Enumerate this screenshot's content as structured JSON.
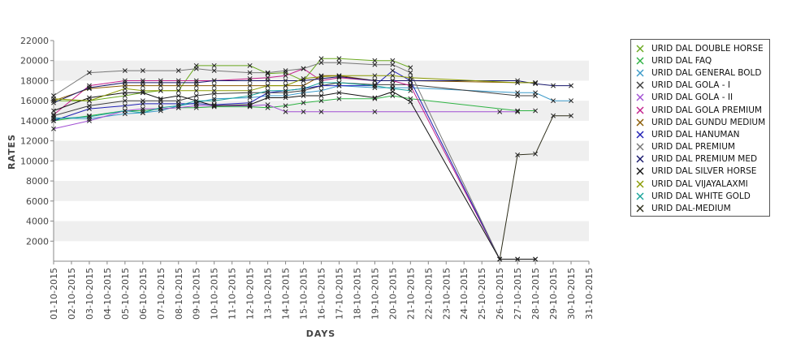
{
  "chart_data": {
    "type": "line",
    "title": "",
    "xlabel": "DAYS",
    "ylabel": "RATES",
    "ylim": [
      0,
      22000
    ],
    "yticks": [
      2000,
      4000,
      6000,
      8000,
      10000,
      12000,
      14000,
      16000,
      18000,
      20000,
      22000
    ],
    "x": [
      "01-10-2015",
      "02-10-2015",
      "03-10-2015",
      "04-10-2015",
      "05-10-2015",
      "06-10-2015",
      "07-10-2015",
      "08-10-2015",
      "09-10-2015",
      "10-10-2015",
      "11-10-2015",
      "12-10-2015",
      "13-10-2015",
      "14-10-2015",
      "15-10-2015",
      "16-10-2015",
      "17-10-2015",
      "18-10-2015",
      "19-10-2015",
      "20-10-2015",
      "21-10-2015",
      "22-10-2015",
      "23-10-2015",
      "24-10-2015",
      "25-10-2015",
      "26-10-2015",
      "27-10-2015",
      "28-10-2015",
      "29-10-2015",
      "30-10-2015",
      "31-10-2015"
    ],
    "legend_position": "right",
    "grid": "alternating horizontal bands",
    "series": [
      {
        "name": "URID DAL DOUBLE HORSE",
        "color": "#6aa81e",
        "points": [
          [
            "01-10-2015",
            16000
          ],
          [
            "03-10-2015",
            16000
          ],
          [
            "05-10-2015",
            16500
          ],
          [
            "06-10-2015",
            16800
          ],
          [
            "07-10-2015",
            17000
          ],
          [
            "08-10-2015",
            17000
          ],
          [
            "09-10-2015",
            19500
          ],
          [
            "10-10-2015",
            19500
          ],
          [
            "12-10-2015",
            19500
          ],
          [
            "13-10-2015",
            18700
          ],
          [
            "14-10-2015",
            18800
          ],
          [
            "15-10-2015",
            18000
          ],
          [
            "16-10-2015",
            20200
          ],
          [
            "17-10-2015",
            20200
          ],
          [
            "19-10-2015",
            20000
          ],
          [
            "20-10-2015",
            20000
          ],
          [
            "21-10-2015",
            19300
          ]
        ]
      },
      {
        "name": "URID DAL FAQ",
        "color": "#2fb344",
        "points": [
          [
            "01-10-2015",
            14000
          ],
          [
            "03-10-2015",
            14500
          ],
          [
            "05-10-2015",
            15000
          ],
          [
            "06-10-2015",
            15000
          ],
          [
            "07-10-2015",
            15200
          ],
          [
            "08-10-2015",
            15300
          ],
          [
            "09-10-2015",
            15300
          ],
          [
            "10-10-2015",
            15400
          ],
          [
            "12-10-2015",
            15400
          ],
          [
            "13-10-2015",
            15300
          ],
          [
            "14-10-2015",
            15500
          ],
          [
            "15-10-2015",
            15800
          ],
          [
            "16-10-2015",
            16000
          ],
          [
            "17-10-2015",
            16200
          ],
          [
            "19-10-2015",
            16200
          ],
          [
            "20-10-2015",
            16500
          ],
          [
            "21-10-2015",
            16200
          ],
          [
            "27-10-2015",
            15000
          ],
          [
            "28-10-2015",
            15000
          ]
        ]
      },
      {
        "name": "URID DAL GENERAL BOLD",
        "color": "#3b9ac9",
        "points": [
          [
            "01-10-2015",
            14300
          ],
          [
            "03-10-2015",
            14200
          ],
          [
            "05-10-2015",
            14700
          ],
          [
            "06-10-2015",
            14800
          ],
          [
            "07-10-2015",
            15000
          ],
          [
            "08-10-2015",
            15500
          ],
          [
            "09-10-2015",
            15800
          ],
          [
            "10-10-2015",
            16200
          ],
          [
            "12-10-2015",
            16300
          ],
          [
            "13-10-2015",
            16500
          ],
          [
            "14-10-2015",
            16500
          ],
          [
            "15-10-2015",
            16800
          ],
          [
            "16-10-2015",
            17000
          ],
          [
            "17-10-2015",
            17500
          ],
          [
            "19-10-2015",
            17300
          ],
          [
            "20-10-2015",
            17300
          ],
          [
            "21-10-2015",
            17300
          ],
          [
            "27-10-2015",
            16800
          ],
          [
            "28-10-2015",
            16800
          ],
          [
            "29-10-2015",
            16000
          ],
          [
            "30-10-2015",
            16000
          ]
        ]
      },
      {
        "name": "URID DAL GOLA - I",
        "color": "#3c3c3c",
        "points": [
          [
            "01-10-2015",
            14500
          ],
          [
            "03-10-2015",
            15500
          ],
          [
            "05-10-2015",
            16000
          ],
          [
            "06-10-2015",
            16000
          ],
          [
            "07-10-2015",
            16000
          ],
          [
            "08-10-2015",
            16000
          ],
          [
            "09-10-2015",
            16500
          ],
          [
            "10-10-2015",
            16700
          ],
          [
            "12-10-2015",
            16800
          ],
          [
            "13-10-2015",
            16800
          ],
          [
            "14-10-2015",
            16800
          ],
          [
            "15-10-2015",
            17000
          ],
          [
            "16-10-2015",
            17500
          ],
          [
            "17-10-2015",
            17800
          ],
          [
            "19-10-2015",
            17600
          ],
          [
            "20-10-2015",
            17600
          ],
          [
            "21-10-2015",
            17600
          ],
          [
            "27-10-2015",
            16500
          ],
          [
            "28-10-2015",
            16500
          ]
        ]
      },
      {
        "name": "URID DAL GOLA - II",
        "color": "#a14fd3",
        "points": [
          [
            "01-10-2015",
            13200
          ],
          [
            "03-10-2015",
            14000
          ],
          [
            "05-10-2015",
            15000
          ],
          [
            "06-10-2015",
            15200
          ],
          [
            "07-10-2015",
            15200
          ],
          [
            "08-10-2015",
            15300
          ],
          [
            "09-10-2015",
            15500
          ],
          [
            "10-10-2015",
            15500
          ],
          [
            "12-10-2015",
            15500
          ],
          [
            "13-10-2015",
            15600
          ],
          [
            "14-10-2015",
            14900
          ],
          [
            "15-10-2015",
            14900
          ],
          [
            "16-10-2015",
            14900
          ],
          [
            "19-10-2015",
            14900
          ],
          [
            "26-10-2015",
            14900
          ],
          [
            "27-10-2015",
            14900
          ]
        ]
      },
      {
        "name": "URID DAL GOLA PREMIUM",
        "color": "#c21f8a",
        "points": [
          [
            "01-10-2015",
            14600
          ],
          [
            "03-10-2015",
            17500
          ],
          [
            "05-10-2015",
            18000
          ],
          [
            "06-10-2015",
            18000
          ],
          [
            "07-10-2015",
            18000
          ],
          [
            "08-10-2015",
            18000
          ],
          [
            "09-10-2015",
            18000
          ],
          [
            "10-10-2015",
            18000
          ],
          [
            "12-10-2015",
            18200
          ],
          [
            "13-10-2015",
            18300
          ],
          [
            "14-10-2015",
            18500
          ],
          [
            "15-10-2015",
            19200
          ],
          [
            "16-10-2015",
            18000
          ],
          [
            "17-10-2015",
            18300
          ],
          [
            "19-10-2015",
            18000
          ],
          [
            "20-10-2015",
            18000
          ],
          [
            "21-10-2015",
            17500
          ],
          [
            "26-10-2015",
            200
          ],
          [
            "27-10-2015",
            200
          ],
          [
            "28-10-2015",
            200
          ]
        ]
      },
      {
        "name": "URID DAL GUNDU MEDIUM",
        "color": "#8a5a00",
        "points": [
          [
            "01-10-2015",
            16000
          ],
          [
            "03-10-2015",
            17200
          ],
          [
            "05-10-2015",
            17500
          ],
          [
            "06-10-2015",
            17500
          ],
          [
            "07-10-2015",
            17500
          ],
          [
            "08-10-2015",
            17500
          ],
          [
            "09-10-2015",
            17500
          ],
          [
            "10-10-2015",
            17500
          ],
          [
            "12-10-2015",
            17500
          ],
          [
            "13-10-2015",
            17500
          ],
          [
            "14-10-2015",
            17500
          ],
          [
            "15-10-2015",
            17500
          ],
          [
            "16-10-2015",
            18500
          ],
          [
            "17-10-2015",
            18500
          ],
          [
            "19-10-2015",
            18000
          ],
          [
            "20-10-2015",
            18000
          ],
          [
            "21-10-2015",
            18000
          ],
          [
            "27-10-2015",
            17800
          ],
          [
            "28-10-2015",
            17800
          ]
        ]
      },
      {
        "name": "URID DAL HANUMAN",
        "color": "#1f1fb5",
        "points": [
          [
            "01-10-2015",
            14000
          ],
          [
            "03-10-2015",
            15200
          ],
          [
            "05-10-2015",
            15500
          ],
          [
            "06-10-2015",
            15700
          ],
          [
            "07-10-2015",
            15700
          ],
          [
            "08-10-2015",
            15700
          ],
          [
            "09-10-2015",
            15700
          ],
          [
            "10-10-2015",
            15600
          ],
          [
            "12-10-2015",
            15800
          ],
          [
            "13-10-2015",
            16800
          ],
          [
            "14-10-2015",
            17000
          ],
          [
            "15-10-2015",
            17200
          ],
          [
            "16-10-2015",
            17500
          ],
          [
            "17-10-2015",
            17500
          ],
          [
            "19-10-2015",
            17500
          ],
          [
            "20-10-2015",
            19000
          ],
          [
            "21-10-2015",
            18000
          ],
          [
            "26-10-2015",
            200
          ],
          [
            "27-10-2015",
            200
          ],
          [
            "28-10-2015",
            200
          ]
        ]
      },
      {
        "name": "URID DAL PREMIUM",
        "color": "#777777",
        "points": [
          [
            "01-10-2015",
            16500
          ],
          [
            "03-10-2015",
            18800
          ],
          [
            "05-10-2015",
            19000
          ],
          [
            "06-10-2015",
            19000
          ],
          [
            "08-10-2015",
            19000
          ],
          [
            "09-10-2015",
            19200
          ],
          [
            "10-10-2015",
            19000
          ],
          [
            "12-10-2015",
            18800
          ],
          [
            "13-10-2015",
            18800
          ],
          [
            "14-10-2015",
            19000
          ],
          [
            "15-10-2015",
            19200
          ],
          [
            "16-10-2015",
            19800
          ],
          [
            "17-10-2015",
            19800
          ],
          [
            "19-10-2015",
            19600
          ],
          [
            "20-10-2015",
            19600
          ],
          [
            "21-10-2015",
            18800
          ],
          [
            "26-10-2015",
            200
          ]
        ]
      },
      {
        "name": "URID DAL PREMIUM MED",
        "color": "#15156b",
        "points": [
          [
            "01-10-2015",
            15800
          ],
          [
            "03-10-2015",
            17300
          ],
          [
            "05-10-2015",
            17800
          ],
          [
            "06-10-2015",
            17800
          ],
          [
            "07-10-2015",
            17800
          ],
          [
            "08-10-2015",
            17800
          ],
          [
            "09-10-2015",
            17800
          ],
          [
            "10-10-2015",
            18000
          ],
          [
            "12-10-2015",
            18000
          ],
          [
            "13-10-2015",
            18000
          ],
          [
            "14-10-2015",
            18000
          ],
          [
            "15-10-2015",
            18000
          ],
          [
            "16-10-2015",
            18200
          ],
          [
            "17-10-2015",
            18400
          ],
          [
            "19-10-2015",
            18000
          ],
          [
            "20-10-2015",
            18000
          ],
          [
            "21-10-2015",
            18000
          ],
          [
            "27-10-2015",
            18000
          ],
          [
            "28-10-2015",
            17700
          ],
          [
            "29-10-2015",
            17500
          ],
          [
            "30-10-2015",
            17500
          ]
        ]
      },
      {
        "name": "URID DAL SILVER HORSE",
        "color": "#111111",
        "points": [
          [
            "01-10-2015",
            15000
          ],
          [
            "03-10-2015",
            16300
          ],
          [
            "05-10-2015",
            16800
          ],
          [
            "06-10-2015",
            16800
          ],
          [
            "07-10-2015",
            16200
          ],
          [
            "08-10-2015",
            16500
          ],
          [
            "09-10-2015",
            16000
          ],
          [
            "10-10-2015",
            15500
          ],
          [
            "12-10-2015",
            15600
          ],
          [
            "13-10-2015",
            16300
          ],
          [
            "14-10-2015",
            16300
          ],
          [
            "15-10-2015",
            16500
          ],
          [
            "16-10-2015",
            16500
          ],
          [
            "17-10-2015",
            16800
          ],
          [
            "19-10-2015",
            16300
          ],
          [
            "20-10-2015",
            16900
          ],
          [
            "21-10-2015",
            15900
          ],
          [
            "26-10-2015",
            200
          ],
          [
            "27-10-2015",
            200
          ],
          [
            "28-10-2015",
            200
          ]
        ]
      },
      {
        "name": "URID DAL VIJAYALAXMI",
        "color": "#8a9a00",
        "points": [
          [
            "01-10-2015",
            16200
          ],
          [
            "03-10-2015",
            16000
          ],
          [
            "05-10-2015",
            17200
          ],
          [
            "06-10-2015",
            17000
          ],
          [
            "07-10-2015",
            17000
          ],
          [
            "08-10-2015",
            17000
          ],
          [
            "09-10-2015",
            17000
          ],
          [
            "10-10-2015",
            17000
          ],
          [
            "12-10-2015",
            17000
          ],
          [
            "13-10-2015",
            17500
          ],
          [
            "14-10-2015",
            17500
          ],
          [
            "15-10-2015",
            18200
          ],
          [
            "16-10-2015",
            18400
          ],
          [
            "17-10-2015",
            18500
          ],
          [
            "19-10-2015",
            18500
          ],
          [
            "20-10-2015",
            18500
          ],
          [
            "21-10-2015",
            18300
          ],
          [
            "27-10-2015",
            17800
          ],
          [
            "28-10-2015",
            17800
          ]
        ]
      },
      {
        "name": "URID DAL WHITE GOLD",
        "color": "#17a39a",
        "points": [
          [
            "01-10-2015",
            14200
          ],
          [
            "03-10-2015",
            14400
          ],
          [
            "05-10-2015",
            15000
          ],
          [
            "06-10-2015",
            14800
          ],
          [
            "07-10-2015",
            15300
          ],
          [
            "08-10-2015",
            15500
          ],
          [
            "09-10-2015",
            16000
          ],
          [
            "10-10-2015",
            16000
          ],
          [
            "12-10-2015",
            16500
          ],
          [
            "13-10-2015",
            17000
          ],
          [
            "14-10-2015",
            17000
          ],
          [
            "15-10-2015",
            17200
          ],
          [
            "16-10-2015",
            17800
          ],
          [
            "17-10-2015",
            17800
          ],
          [
            "19-10-2015",
            17500
          ],
          [
            "20-10-2015",
            17200
          ],
          [
            "21-10-2015",
            17000
          ]
        ]
      },
      {
        "name": "URID DAL-MEDIUM",
        "color": "#2d2d1a",
        "points": [
          [
            "26-10-2015",
            200
          ],
          [
            "27-10-2015",
            10600
          ],
          [
            "28-10-2015",
            10700
          ],
          [
            "29-10-2015",
            14500
          ],
          [
            "30-10-2015",
            14500
          ]
        ]
      }
    ]
  }
}
